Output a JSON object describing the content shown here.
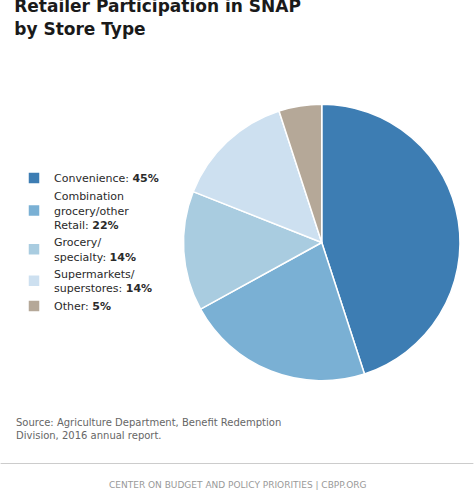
{
  "chart_data": {
    "type": "pie",
    "title": "Retailer Participation in SNAP\nby Store Type",
    "categories": [
      "Convenience:",
      "Combination\ngrocery/other\nRetail:",
      "Grocery/\nspecialty:",
      "Supermarkets/\nsuperstores:",
      "Other:"
    ],
    "values": [
      45,
      22,
      14,
      14,
      5
    ],
    "value_labels": [
      "45%",
      "22%",
      "14%",
      "14%",
      "5%"
    ],
    "colors": [
      "#3d7db3",
      "#7ab0d4",
      "#a9cce0",
      "#cde0f0",
      "#b5a898"
    ],
    "legend": "left",
    "data_labels": false,
    "annotations": [
      "Source: Agriculture Department, Benefit Redemption\nDivision, 2016 annual report.",
      "CENTER ON BUDGET AND POLICY PRIORITIES | CBPP.ORG"
    ]
  }
}
